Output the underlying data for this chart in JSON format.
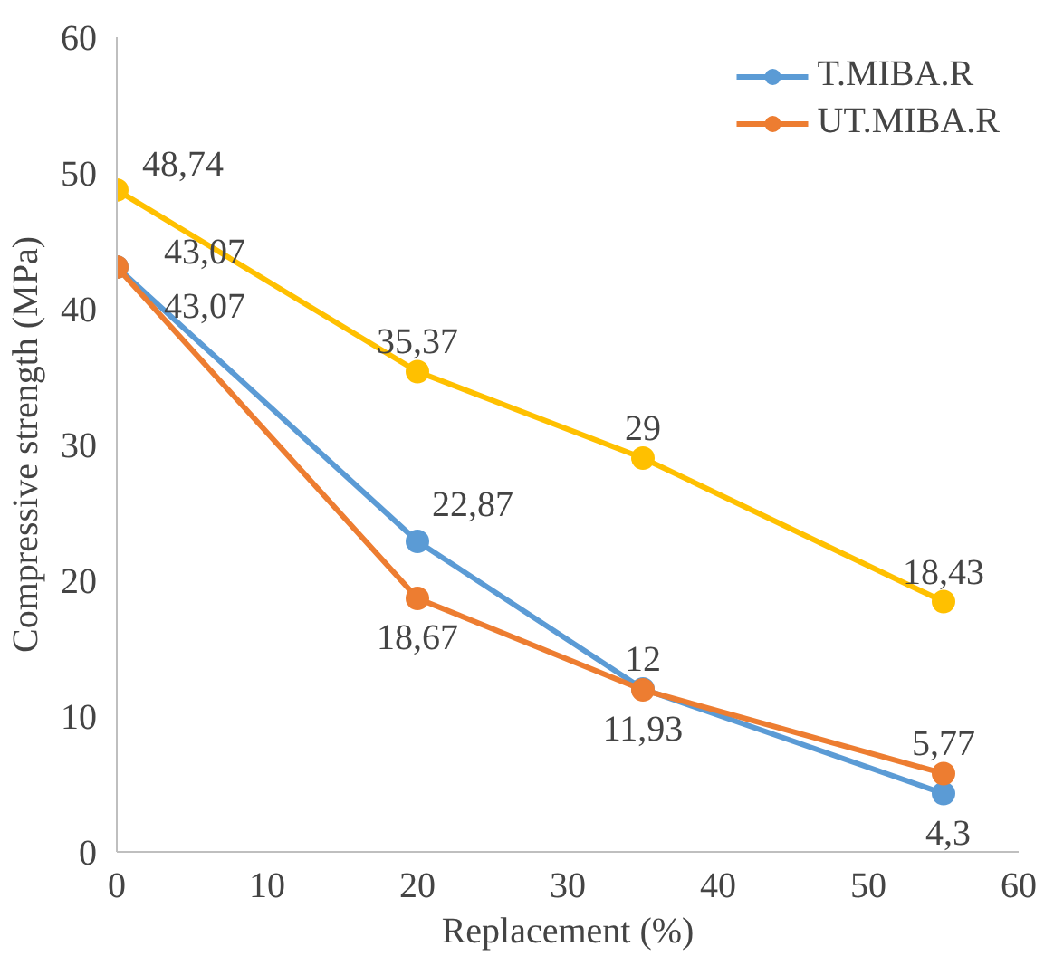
{
  "chart_data": {
    "type": "line",
    "xlabel": "Replacement (%)",
    "ylabel": "Compressive strength (MPa)",
    "x": [
      0,
      20,
      35,
      55
    ],
    "series": [
      {
        "name": "T.MIBA.R",
        "color": "#5b9bd5",
        "values": [
          43.07,
          22.87,
          12,
          4.3
        ],
        "value_labels": [
          "43,07",
          "22,87",
          "12",
          "4,3"
        ]
      },
      {
        "name": "UT.MIBA.R",
        "color": "#ed7d31",
        "values": [
          43.07,
          18.67,
          11.93,
          5.77
        ],
        "value_labels": [
          "43,07",
          "18,67",
          "11,93",
          "5,77"
        ]
      },
      {
        "color": "#ffc000",
        "values": [
          48.74,
          35.37,
          29,
          18.43
        ],
        "value_labels": [
          "48,74",
          "35,37",
          "29",
          "18,43"
        ]
      }
    ],
    "xlim": [
      0,
      60
    ],
    "xticks": [
      0,
      10,
      20,
      30,
      40,
      50,
      60
    ],
    "ylim": [
      0,
      60
    ],
    "yticks": [
      0,
      10,
      20,
      30,
      40,
      50,
      60
    ],
    "grid": false,
    "legend": "top right",
    "marker": "circle",
    "line_style": "solid"
  }
}
